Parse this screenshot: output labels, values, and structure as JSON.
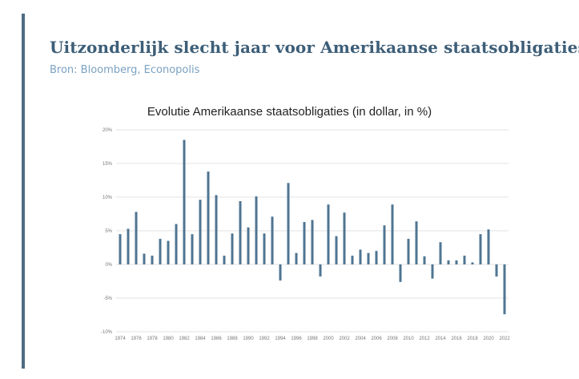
{
  "header": {
    "title": "Uitzonderlijk slecht jaar voor Amerikaanse staatsobligaties",
    "source": "Bron: Bloomberg, Econopolis"
  },
  "colors": {
    "accent": "#4e6b82",
    "bar": "#4f7592",
    "title": "#3d5e78",
    "source": "#7ba2c2"
  },
  "chart_data": {
    "type": "bar",
    "title": "Evolutie Amerikaanse staatsobligaties (in dollar, in %)",
    "xlabel": "",
    "ylabel": "",
    "ylim": [
      -10,
      20
    ],
    "yticks": [
      -10,
      -5,
      0,
      5,
      10,
      15,
      20
    ],
    "ytick_labels": [
      "-10%",
      "-5%",
      "0%",
      "5%",
      "10%",
      "15%",
      "20%"
    ],
    "grid": true,
    "categories": [
      "1974",
      "1975",
      "1976",
      "1977",
      "1978",
      "1979",
      "1980",
      "1981",
      "1982",
      "1983",
      "1984",
      "1985",
      "1986",
      "1987",
      "1988",
      "1989",
      "1990",
      "1991",
      "1992",
      "1993",
      "1994",
      "1995",
      "1996",
      "1997",
      "1998",
      "1999",
      "2000",
      "2001",
      "2002",
      "2003",
      "2004",
      "2005",
      "2006",
      "2007",
      "2008",
      "2009",
      "2010",
      "2011",
      "2012",
      "2013",
      "2014",
      "2015",
      "2016",
      "2017",
      "2018",
      "2019",
      "2020",
      "2021",
      "2022"
    ],
    "xtick_labels": [
      "1974",
      "1976",
      "1978",
      "1980",
      "1982",
      "1984",
      "1986",
      "1988",
      "1990",
      "1992",
      "1994",
      "1996",
      "1998",
      "2000",
      "2002",
      "2004",
      "2006",
      "2008",
      "2010",
      "2012",
      "2014",
      "2016",
      "2018",
      "2020",
      "2022"
    ],
    "values": [
      4.5,
      5.3,
      7.8,
      1.6,
      1.3,
      3.8,
      3.5,
      6.0,
      18.5,
      4.5,
      9.6,
      13.8,
      10.3,
      1.3,
      4.6,
      9.4,
      5.5,
      10.1,
      4.6,
      7.1,
      -2.4,
      12.1,
      1.7,
      6.3,
      6.6,
      -1.8,
      8.9,
      4.2,
      7.7,
      1.3,
      2.2,
      1.7,
      2.0,
      5.8,
      8.9,
      -2.6,
      3.8,
      6.4,
      1.2,
      -2.1,
      3.3,
      0.6,
      0.6,
      1.3,
      0.3,
      4.5,
      5.2,
      -1.8,
      -7.4
    ]
  }
}
